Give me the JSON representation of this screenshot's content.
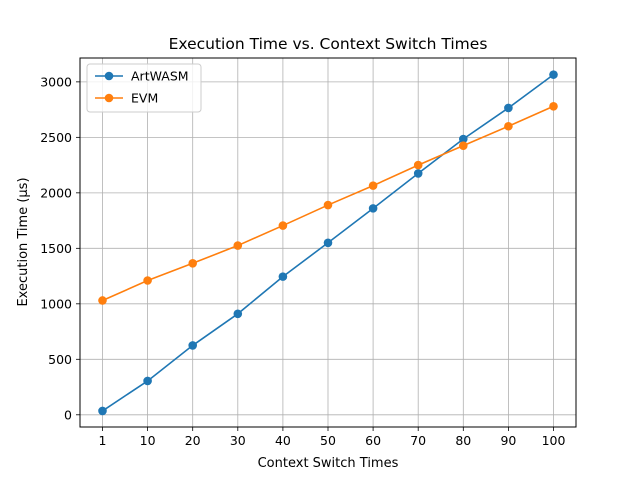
{
  "chart_data": {
    "type": "line",
    "title": "Execution Time vs. Context Switch Times",
    "xlabel": "Context Switch Times",
    "ylabel": "Execution Time (µs)",
    "x_categories": [
      "1",
      "10",
      "20",
      "30",
      "40",
      "50",
      "60",
      "70",
      "80",
      "90",
      "100"
    ],
    "yticks": [
      0,
      500,
      1000,
      1500,
      2000,
      2500,
      3000
    ],
    "ylim": [
      -110,
      3215
    ],
    "grid": true,
    "legend_position": "top-left",
    "series": [
      {
        "name": "ArtWASM",
        "color": "#1f77b4",
        "marker": "circle",
        "values": [
          35,
          305,
          625,
          910,
          1245,
          1550,
          1860,
          2175,
          2485,
          2765,
          3065
        ]
      },
      {
        "name": "EVM",
        "color": "#ff7f0e",
        "marker": "circle",
        "values": [
          1030,
          1210,
          1365,
          1525,
          1705,
          1890,
          2065,
          2250,
          2425,
          2600,
          2780
        ]
      }
    ]
  }
}
